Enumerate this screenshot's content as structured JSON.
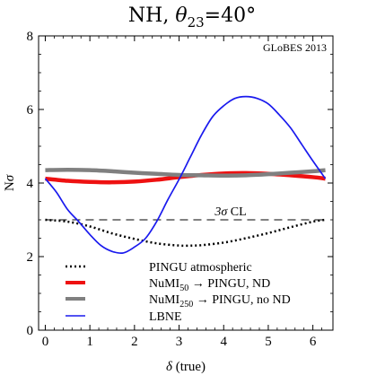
{
  "chart_data": {
    "type": "line",
    "title": {
      "prefix": "NH, ",
      "theta_symbol": "θ",
      "theta_sub": "23",
      "suffix": "=40°"
    },
    "watermark": "GLoBES 2013",
    "xlabel": {
      "symbol": "δ",
      "rest": " (true)"
    },
    "ylabel": {
      "main": "N",
      "sigma": "σ"
    },
    "xlim": [
      -0.15,
      6.45
    ],
    "ylim": [
      0,
      8
    ],
    "xticks": [
      0,
      1,
      2,
      3,
      4,
      5,
      6
    ],
    "yticks": [
      0,
      2,
      4,
      6,
      8
    ],
    "grid": false,
    "reference_line": {
      "y": 3.0,
      "label_sigma": "3σ",
      "label_rest": " CL",
      "style": "dashed",
      "color": "#000000"
    },
    "legend_position": "bottom-left",
    "series": [
      {
        "name": "PINGU atmospheric",
        "legend_text": {
          "main": "PINGU atmospheric"
        },
        "color": "#000000",
        "style": "dotted",
        "x": [
          0,
          0.5,
          1.0,
          1.5,
          2.0,
          2.5,
          3.0,
          3.3,
          3.5,
          4.0,
          4.5,
          5.0,
          5.5,
          6.0,
          6.28
        ],
        "y": [
          3.0,
          2.95,
          2.82,
          2.63,
          2.48,
          2.36,
          2.3,
          2.3,
          2.31,
          2.38,
          2.5,
          2.64,
          2.8,
          2.95,
          3.0
        ]
      },
      {
        "name": "NuMI50 → PINGU, ND",
        "legend_text": {
          "main": "NuMI",
          "sub": "50",
          "rest": " → PINGU, ND"
        },
        "color": "#ee1111",
        "style": "solid",
        "x": [
          0,
          0.5,
          1.0,
          1.5,
          2.0,
          2.5,
          3.0,
          3.5,
          4.0,
          4.5,
          5.0,
          5.5,
          6.0,
          6.28
        ],
        "y": [
          4.12,
          4.06,
          4.03,
          4.02,
          4.04,
          4.09,
          4.16,
          4.22,
          4.26,
          4.27,
          4.25,
          4.21,
          4.16,
          4.12
        ]
      },
      {
        "name": "NuMI250 → PINGU, no ND",
        "legend_text": {
          "main": "NuMI",
          "sub": "250",
          "rest": " → PINGU, no ND"
        },
        "color": "#808080",
        "style": "solid",
        "x": [
          0,
          0.5,
          1.0,
          1.5,
          2.0,
          2.5,
          3.0,
          3.5,
          4.0,
          4.5,
          5.0,
          5.5,
          6.0,
          6.28
        ],
        "y": [
          4.35,
          4.36,
          4.35,
          4.32,
          4.28,
          4.25,
          4.22,
          4.21,
          4.2,
          4.21,
          4.24,
          4.28,
          4.32,
          4.35
        ]
      },
      {
        "name": "LBNE",
        "legend_text": {
          "main": "LBNE"
        },
        "color": "#1a1aee",
        "style": "solid",
        "x": [
          0,
          0.25,
          0.5,
          0.75,
          1.0,
          1.25,
          1.5,
          1.75,
          2.0,
          2.25,
          2.5,
          2.75,
          3.0,
          3.25,
          3.5,
          3.75,
          4.0,
          4.25,
          4.5,
          4.75,
          5.0,
          5.25,
          5.5,
          5.75,
          6.0,
          6.28
        ],
        "y": [
          4.12,
          3.75,
          3.28,
          2.95,
          2.6,
          2.3,
          2.14,
          2.1,
          2.26,
          2.5,
          2.96,
          3.55,
          4.1,
          4.7,
          5.3,
          5.8,
          6.1,
          6.3,
          6.35,
          6.3,
          6.15,
          5.85,
          5.5,
          5.05,
          4.6,
          4.12
        ]
      }
    ]
  }
}
